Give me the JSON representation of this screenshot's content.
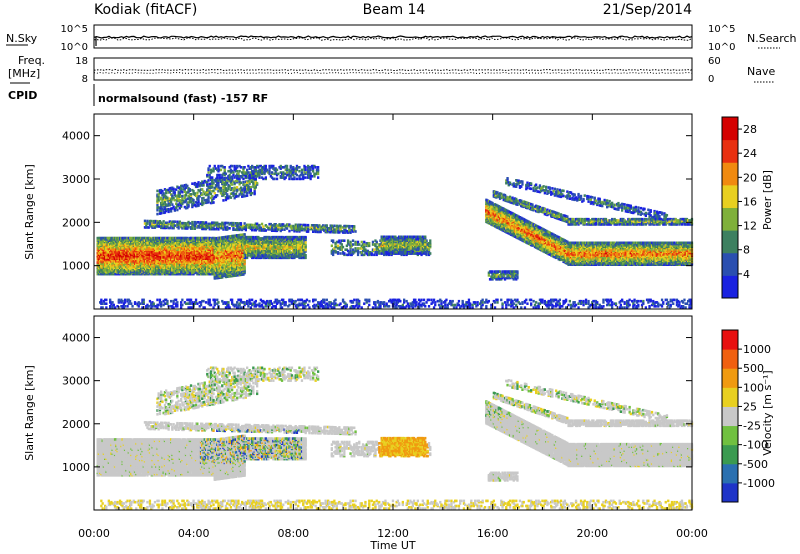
{
  "header": {
    "radar": "Kodiak (fitACF)",
    "beam": "Beam 14",
    "date": "21/Sep/2014"
  },
  "colors": {
    "axis": "#000000",
    "background": "#ffffff"
  },
  "chart_data": [
    {
      "type": "line",
      "name": "noise-panel",
      "left_label": "N.Sky",
      "right_label": "N.Search",
      "left_ticks": [
        "10^5",
        "10^0"
      ],
      "right_ticks": [
        "10^5",
        "10^0"
      ],
      "right_legend_style": "dotted"
    },
    {
      "type": "line",
      "name": "frequency-panel",
      "left_label_1": "Freq.",
      "left_label_2": "[MHz]",
      "left_ticks": [
        "18",
        "8"
      ],
      "right_label": "Nave",
      "right_ticks": [
        "60",
        "0"
      ],
      "right_legend_style": "dotted",
      "ylim_freq": [
        8,
        18
      ],
      "ylim_nave": [
        0,
        60
      ]
    },
    {
      "type": "table",
      "name": "cpid-panel",
      "label": "CPID",
      "text": "normalsound (fast) -157 RF"
    },
    {
      "type": "heatmap",
      "name": "power-panel",
      "ylabel": "Slant Range [km]",
      "yticks": [
        "1000",
        "2000",
        "3000",
        "4000"
      ],
      "ylim": [
        0,
        4500
      ],
      "colorbar_label": "Power [dB]",
      "colorbar_ticks": [
        "4",
        "8",
        "12",
        "16",
        "20",
        "24",
        "28"
      ],
      "colorbar_range": [
        0,
        30
      ],
      "colorbar_colors": [
        "#1a22e0",
        "#2a4fb0",
        "#3d8060",
        "#7fb03a",
        "#e8d020",
        "#f08a10",
        "#e83010",
        "#d40000"
      ]
    },
    {
      "type": "heatmap",
      "name": "velocity-panel",
      "ylabel": "Slant Range [km]",
      "yticks": [
        "1000",
        "2000",
        "3000",
        "4000"
      ],
      "ylim": [
        0,
        4500
      ],
      "colorbar_label": "Velocity [m s⁻¹]",
      "colorbar_ticks": [
        "1000",
        "500",
        "100",
        "25",
        "-25",
        "-100",
        "-500",
        "-1000"
      ],
      "colorbar_colors": [
        "#1f34c8",
        "#2a70b0",
        "#3a9a50",
        "#70c040",
        "#c8c8c8",
        "#e8d020",
        "#f09a10",
        "#f06010",
        "#e81010"
      ]
    }
  ],
  "x_axis": {
    "label": "Time UT",
    "ticks": [
      "00:00",
      "04:00",
      "08:00",
      "12:00",
      "16:00",
      "20:00",
      "00:00"
    ],
    "xlim_hours": [
      0,
      24
    ]
  }
}
